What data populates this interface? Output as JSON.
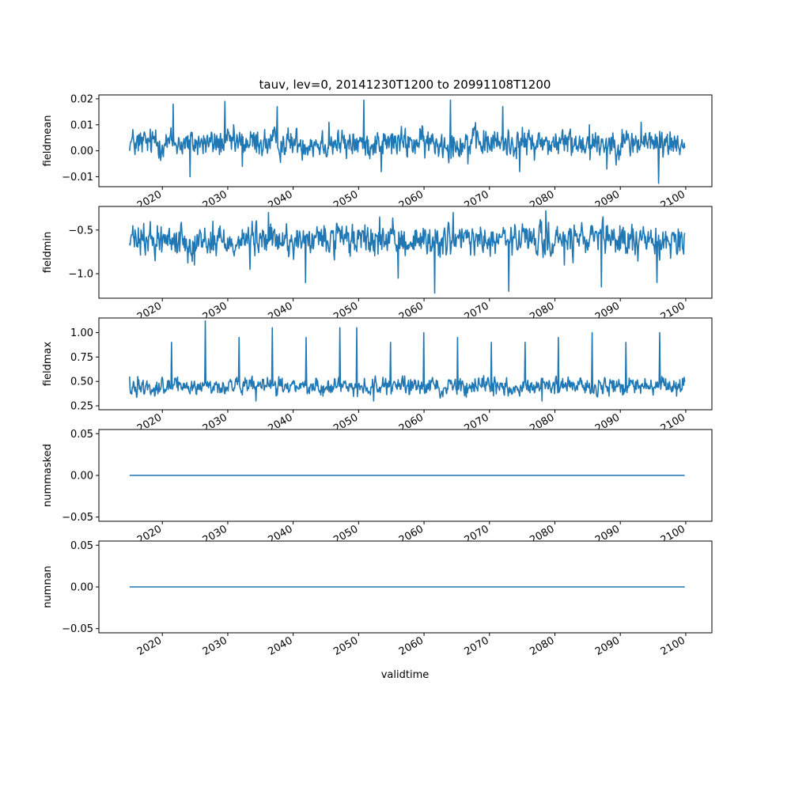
{
  "figure": {
    "title": "tauv, lev=0, 20141230T1200 to 20991108T1200",
    "xlabel": "validtime",
    "line_color": "#1f77b4"
  },
  "chart_data": [
    {
      "type": "line",
      "ylabel": "fieldmean",
      "xlim": [
        2010.3,
        2104.0
      ],
      "ylim": [
        -0.0138,
        0.0215
      ],
      "x_ticks": [
        2020,
        2030,
        2040,
        2050,
        2060,
        2070,
        2080,
        2090,
        2100
      ],
      "y_ticks": [
        -0.01,
        0.0,
        0.01,
        0.02
      ],
      "y_tick_labels": [
        "−0.01",
        "0.00",
        "0.01",
        "0.02"
      ],
      "series": [
        {
          "x_range": [
            2014.99,
            2099.85
          ],
          "points": 1020,
          "mean": 0.003,
          "amplitude": 0.004,
          "peak_max": 0.0195,
          "peak_min": -0.0125,
          "notes_values": [
            0.0,
            0.008,
            0.018,
            -0.01,
            0.006,
            0.019,
            -0.006,
            0.003,
            0.017,
            0.002,
            0.004,
            0.011,
            -0.003,
            0.0195,
            -0.008,
            0.006,
            0.004,
            0.005,
            0.0195,
            -0.005,
            0.003,
            0.017,
            -0.008,
            0.004,
            0.002,
            0.005,
            0.01,
            -0.007,
            0.004,
            0.011,
            -0.0125,
            0.004
          ]
        }
      ]
    },
    {
      "type": "line",
      "ylabel": "fieldmin",
      "xlim": [
        2010.3,
        2104.0
      ],
      "ylim": [
        -1.28,
        -0.23
      ],
      "x_ticks": [
        2020,
        2030,
        2040,
        2050,
        2060,
        2070,
        2080,
        2090,
        2100
      ],
      "y_ticks": [
        -1.0,
        -0.5
      ],
      "y_tick_labels": [
        "−1.0",
        "−0.5"
      ],
      "series": [
        {
          "x_range": [
            2014.99,
            2099.85
          ],
          "points": 1020,
          "mean": -0.62,
          "amplitude": 0.13,
          "peak_max": -0.28,
          "peak_min": -1.22,
          "notes_values": [
            -0.65,
            -0.45,
            -0.55,
            -0.9,
            -0.4,
            -0.6,
            -0.95,
            -0.3,
            -0.55,
            -1.1,
            -0.45,
            -0.6,
            -0.7,
            -0.35,
            -1.05,
            -0.5,
            -1.22,
            -0.3,
            -0.6,
            -0.8,
            -1.2,
            -0.5,
            -0.28,
            -0.9,
            -0.55,
            -1.15,
            -0.45,
            -0.7,
            -1.1,
            -0.55
          ]
        }
      ]
    },
    {
      "type": "line",
      "ylabel": "fieldmax",
      "xlim": [
        2010.3,
        2104.0
      ],
      "ylim": [
        0.21,
        1.15
      ],
      "x_ticks": [
        2020,
        2030,
        2040,
        2050,
        2060,
        2070,
        2080,
        2090,
        2100
      ],
      "y_ticks": [
        0.25,
        0.5,
        0.75,
        1.0
      ],
      "y_tick_labels": [
        "0.25",
        "0.50",
        "0.75",
        "1.00"
      ],
      "series": [
        {
          "x_range": [
            2014.99,
            2099.85
          ],
          "points": 1020,
          "mean": 0.45,
          "amplitude": 0.06,
          "peak_max": 1.12,
          "peak_min": 0.26,
          "notes_values": [
            0.55,
            0.35,
            0.9,
            0.45,
            1.12,
            0.4,
            0.95,
            0.3,
            1.05,
            0.4,
            0.95,
            0.35,
            1.05,
            1.05,
            0.3,
            0.9,
            0.45,
            1.0,
            0.35,
            0.95,
            0.4,
            0.9,
            0.35,
            0.9,
            0.3,
            0.95,
            0.4,
            1.0,
            0.35,
            0.9,
            0.45,
            1.0,
            0.35
          ]
        }
      ]
    },
    {
      "type": "line",
      "ylabel": "nummasked",
      "xlim": [
        2010.3,
        2104.0
      ],
      "ylim": [
        -0.055,
        0.055
      ],
      "x_ticks": [
        2020,
        2030,
        2040,
        2050,
        2060,
        2070,
        2080,
        2090,
        2100
      ],
      "y_ticks": [
        -0.05,
        0.0,
        0.05
      ],
      "y_tick_labels": [
        "−0.05",
        "0.00",
        "0.05"
      ],
      "series": [
        {
          "x": [
            2014.99,
            2099.85
          ],
          "y": [
            0.0,
            0.0
          ]
        }
      ]
    },
    {
      "type": "line",
      "ylabel": "numnan",
      "xlim": [
        2010.3,
        2104.0
      ],
      "ylim": [
        -0.055,
        0.055
      ],
      "x_ticks": [
        2020,
        2030,
        2040,
        2050,
        2060,
        2070,
        2080,
        2090,
        2100
      ],
      "y_ticks": [
        -0.05,
        0.0,
        0.05
      ],
      "y_tick_labels": [
        "−0.05",
        "0.00",
        "0.05"
      ],
      "series": [
        {
          "x": [
            2014.99,
            2099.85
          ],
          "y": [
            0.0,
            0.0
          ]
        }
      ]
    }
  ]
}
